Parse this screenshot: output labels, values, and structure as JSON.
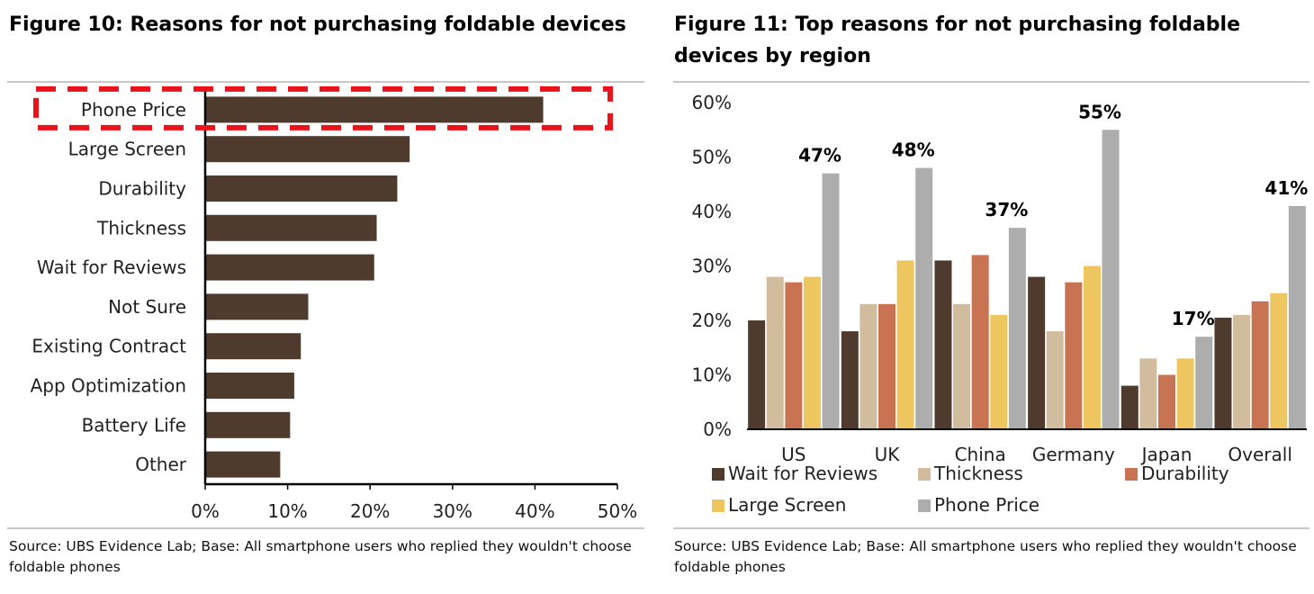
{
  "colors": {
    "bar_dark": "#4f3a2e",
    "wait_for_reviews": "#4f3a2e",
    "thickness": "#d2bc9e",
    "durability": "#c87352",
    "large_screen": "#eec660",
    "phone_price": "#adadad",
    "highlight_border": "#e8131b",
    "rule": "#c8c8c8"
  },
  "figure10": {
    "title": "Figure 10: Reasons for not purchasing foldable devices",
    "source": "Source: UBS Evidence Lab; Base: All smartphone users who replied they wouldn't choose foldable phones",
    "highlighted_category": "Phone Price"
  },
  "figure11": {
    "title": "Figure 11: Top reasons for not purchasing foldable devices by region",
    "source": "Source: UBS Evidence Lab; Base: All smartphone users who replied they wouldn't choose foldable phones"
  },
  "chart_data": [
    {
      "type": "bar",
      "orientation": "horizontal",
      "title": "Figure 10: Reasons for not purchasing foldable devices",
      "categories": [
        "Phone Price",
        "Large Screen",
        "Durability",
        "Thickness",
        "Wait for Reviews",
        "Not Sure",
        "Existing Contract",
        "App Optimization",
        "Battery Life",
        "Other"
      ],
      "values": [
        0.41,
        0.248,
        0.233,
        0.208,
        0.205,
        0.125,
        0.116,
        0.108,
        0.103,
        0.091
      ],
      "xlim": [
        0,
        0.5
      ],
      "ticks": [
        "0%",
        "10%",
        "20%",
        "30%",
        "40%",
        "50%"
      ],
      "grid": false
    },
    {
      "type": "bar",
      "title": "Figure 11: Top reasons for not purchasing foldable devices by region",
      "categories": [
        "US",
        "UK",
        "China",
        "Germany",
        "Japan",
        "Overall"
      ],
      "series": [
        {
          "name": "Wait for Reviews",
          "values": [
            0.2,
            0.18,
            0.31,
            0.28,
            0.08,
            0.205
          ]
        },
        {
          "name": "Thickness",
          "values": [
            0.28,
            0.23,
            0.23,
            0.18,
            0.13,
            0.21
          ]
        },
        {
          "name": "Durability",
          "values": [
            0.27,
            0.23,
            0.32,
            0.27,
            0.1,
            0.235
          ]
        },
        {
          "name": "Large Screen",
          "values": [
            0.28,
            0.31,
            0.21,
            0.3,
            0.13,
            0.25
          ]
        },
        {
          "name": "Phone Price",
          "values": [
            0.47,
            0.48,
            0.37,
            0.55,
            0.17,
            0.41
          ]
        }
      ],
      "data_labels": [
        "47%",
        "48%",
        "37%",
        "55%",
        "17%",
        "41%"
      ],
      "ylim": [
        0,
        0.6
      ],
      "ticks": [
        "0%",
        "10%",
        "20%",
        "30%",
        "40%",
        "50%",
        "60%"
      ],
      "legend_position": "bottom",
      "grid": false
    }
  ]
}
